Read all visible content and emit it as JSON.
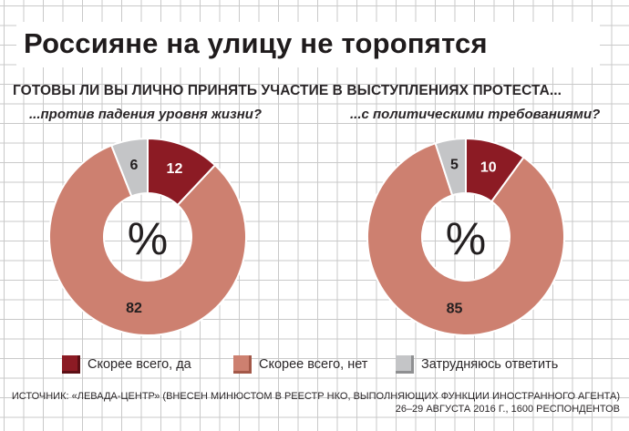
{
  "title": "Россияне на улицу не торопятся",
  "question": "ГОТОВЫ ЛИ ВЫ ЛИЧНО ПРИНЯТЬ УЧАСТИЕ В ВЫСТУПЛЕНИЯХ ПРОТЕСТА...",
  "colors": {
    "yes": "#8c1b24",
    "no": "#cd8070",
    "unsure": "#c4c5c7",
    "label_dark": "#231f20",
    "label_light": "#ffffff"
  },
  "chart_data": [
    {
      "type": "pie",
      "variant": "donut",
      "title": "...против падения уровня жизни?",
      "center_label": "%",
      "categories": [
        "Скорее всего, да",
        "Скорее всего, нет",
        "Затрудняюсь ответить"
      ],
      "values": [
        12,
        82,
        6
      ]
    },
    {
      "type": "pie",
      "variant": "donut",
      "title": "...с политическими требованиями?",
      "center_label": "%",
      "categories": [
        "Скорее всего, да",
        "Скорее всего, нет",
        "Затрудняюсь ответить"
      ],
      "values": [
        10,
        85,
        5
      ]
    }
  ],
  "legend": [
    {
      "key": "yes",
      "label": "Скорее всего, да"
    },
    {
      "key": "no",
      "label": "Скорее всего, нет"
    },
    {
      "key": "unsure",
      "label": "Затрудняюсь ответить"
    }
  ],
  "source": {
    "line1": "ИСТОЧНИК: «ЛЕВАДА-ЦЕНТР» (ВНЕСЕН МИНЮСТОМ В РЕЕСТР НКО, ВЫПОЛНЯЮЩИХ ФУНКЦИИ ИНОСТРАННОГО АГЕНТА)",
    "line2": "26–29 АВГУСТА 2016 Г., 1600 РЕСПОНДЕНТОВ"
  }
}
